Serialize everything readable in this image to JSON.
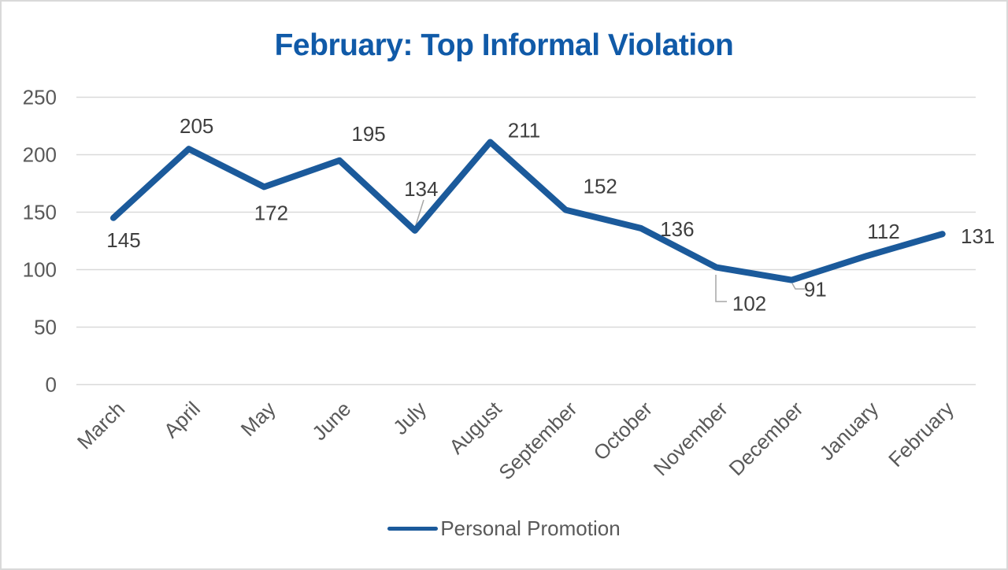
{
  "chart_data": {
    "type": "line",
    "title": "February: Top Informal Violation",
    "categories": [
      "March",
      "April",
      "May",
      "June",
      "July",
      "August",
      "September",
      "October",
      "November",
      "December",
      "January",
      "February"
    ],
    "series": [
      {
        "name": "Personal Promotion",
        "values": [
          145,
          205,
          172,
          195,
          134,
          211,
          152,
          136,
          102,
          91,
          112,
          131
        ]
      }
    ],
    "xlabel": "",
    "ylabel": "",
    "ylim": [
      0,
      250
    ],
    "yticks": [
      0,
      50,
      100,
      150,
      200,
      250
    ],
    "grid": true,
    "data_labels": true,
    "legend_position": "bottom",
    "x_label_rotation_deg": -45,
    "colors": {
      "series_line": "#1B5A9B",
      "title_text": "#105AA8",
      "data_label": "#3F3F3F",
      "axis_label": "#595959",
      "gridline": "#D9D9D9",
      "leader_line": "#A6A6A6",
      "canvas_border": "#D9D9D9",
      "background": "#FFFFFF"
    }
  }
}
